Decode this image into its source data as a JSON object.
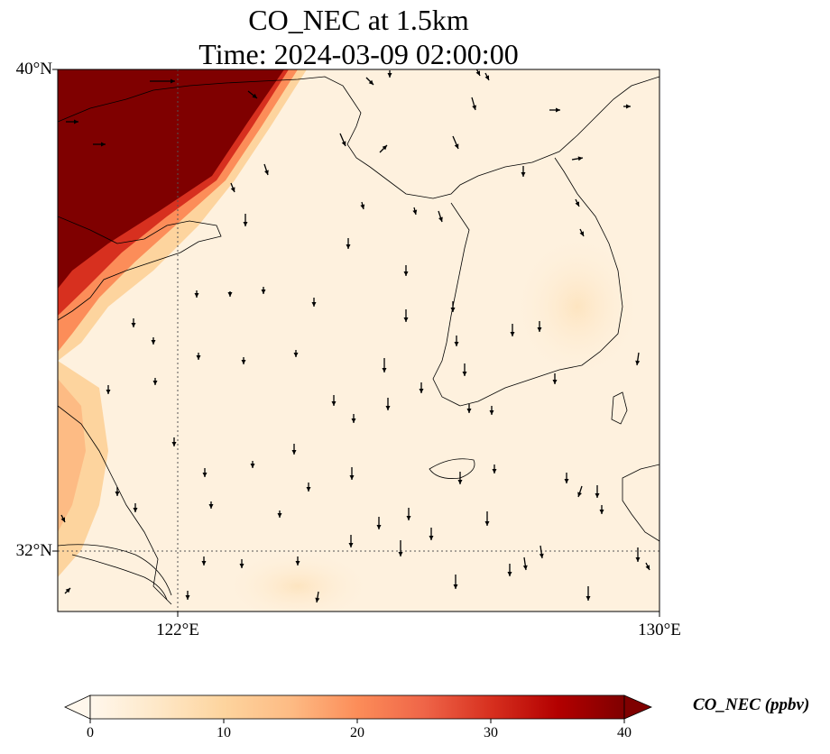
{
  "title": {
    "line1": "CO_NEC at 1.5km",
    "line2": "Time: 2024-03-09 02:00:00"
  },
  "map": {
    "lon_range": [
      119,
      134
    ],
    "lat_range": [
      30.8,
      40
    ],
    "lat_labels": [
      {
        "value": 40,
        "text": "40°N"
      },
      {
        "value": 32,
        "text": "32°N"
      }
    ],
    "lon_labels": [
      {
        "value": 122,
        "text": "122°E"
      },
      {
        "value": 130,
        "text": "130°E"
      }
    ],
    "gridlines": {
      "lat": [
        32
      ],
      "lon": [
        122
      ],
      "style": "dotted"
    }
  },
  "colorbar": {
    "label": "CO_NEC (ppbv)",
    "ticks": [
      0,
      10,
      20,
      30,
      40
    ],
    "range": [
      0,
      40
    ],
    "extend": "both",
    "colormap": "OrRd",
    "colors": [
      "#fff7ec",
      "#fee8c8",
      "#fdd49e",
      "#fdbb84",
      "#fc8d59",
      "#ef6548",
      "#d7301f",
      "#b30000",
      "#7f0000"
    ]
  }
}
